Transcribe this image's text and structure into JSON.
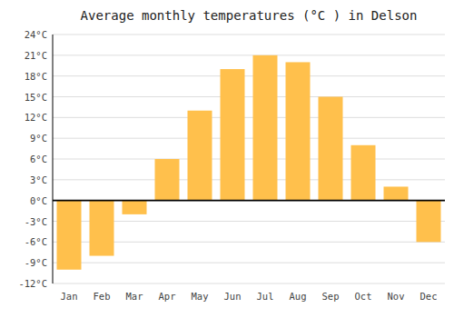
{
  "chart_data": {
    "type": "bar",
    "title": "Average monthly temperatures (°C ) in Delson",
    "categories": [
      "Jan",
      "Feb",
      "Mar",
      "Apr",
      "May",
      "Jun",
      "Jul",
      "Aug",
      "Sep",
      "Oct",
      "Nov",
      "Dec"
    ],
    "values": [
      -10,
      -8,
      -2,
      6,
      13,
      19,
      21,
      20,
      15,
      8,
      2,
      -6
    ],
    "color": "#FFC04C",
    "ylim": [
      -12,
      24
    ],
    "yticks": [
      {
        "value": -12,
        "label": "-12°C"
      },
      {
        "value": -9,
        "label": "-9°C"
      },
      {
        "value": -6,
        "label": "-6°C"
      },
      {
        "value": -3,
        "label": "-3°C"
      },
      {
        "value": 0,
        "label": "0°C"
      },
      {
        "value": 3,
        "label": "3°C"
      },
      {
        "value": 6,
        "label": "6°C"
      },
      {
        "value": 9,
        "label": "9°C"
      },
      {
        "value": 12,
        "label": "12°C"
      },
      {
        "value": 15,
        "label": "15°C"
      },
      {
        "value": 18,
        "label": "18°C"
      },
      {
        "value": 21,
        "label": "21°C"
      },
      {
        "value": 24,
        "label": "24°C"
      }
    ],
    "grid": true
  }
}
